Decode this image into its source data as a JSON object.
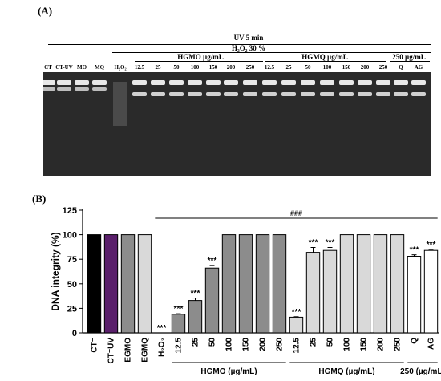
{
  "panel_a": {
    "label": "(A)",
    "header_uv": "UV 5 min",
    "header_h2o2": "H₂O₂ 30 %",
    "group_hgmo": "HGMO µg/mL",
    "group_hgmq": "HGMQ µg/mL",
    "group_250": "250 µg/mL",
    "lanes": [
      "CT",
      "CT-UV",
      "MO",
      "MQ",
      "H₂O₂",
      "12.5",
      "25",
      "50",
      "100",
      "150",
      "200",
      "250",
      "12.5",
      "25",
      "50",
      "100",
      "150",
      "200",
      "250",
      "Q",
      "AG"
    ]
  },
  "panel_b": {
    "label": "(B)"
  },
  "chart_data": {
    "type": "bar",
    "ylabel": "DNA integrity (%)",
    "ylim": [
      0,
      125
    ],
    "yticks": [
      0,
      25,
      50,
      75,
      100,
      125
    ],
    "significance_bar_label": "###",
    "categories": [
      "CT⁻",
      "CT⁺UV",
      "EGMO",
      "EGMQ",
      "H₂O₂",
      "12.5",
      "25",
      "50",
      "100",
      "150",
      "200",
      "250",
      "12.5",
      "25",
      "50",
      "100",
      "150",
      "200",
      "250",
      "Q",
      "AG"
    ],
    "values": [
      100,
      100,
      100,
      100,
      0,
      19,
      33,
      66,
      100,
      100,
      100,
      100,
      16,
      82,
      84,
      100,
      100,
      100,
      100,
      78,
      84
    ],
    "errors": [
      0,
      0,
      0,
      0,
      0,
      0.5,
      2.5,
      2.5,
      0,
      0,
      0,
      0,
      0.5,
      5,
      3,
      0,
      0,
      0,
      0,
      1.5,
      1
    ],
    "stars": [
      "",
      "",
      "",
      "",
      "***",
      "***",
      "***",
      "***",
      "",
      "",
      "",
      "",
      "***",
      "***",
      "***",
      "",
      "",
      "",
      "",
      "***",
      "***"
    ],
    "bar_colors": [
      "#000000",
      "#5a1f6b",
      "#8c8c8c",
      "#d9d9d9",
      "#ffffff",
      "#8c8c8c",
      "#8c8c8c",
      "#8c8c8c",
      "#8c8c8c",
      "#8c8c8c",
      "#8c8c8c",
      "#8c8c8c",
      "#d9d9d9",
      "#d9d9d9",
      "#d9d9d9",
      "#d9d9d9",
      "#d9d9d9",
      "#d9d9d9",
      "#d9d9d9",
      "#ffffff",
      "#ffffff"
    ],
    "group_labels": [
      "HGMO (µg/mL)",
      "HGMQ (µg/mL)",
      "250 (µg/mL)"
    ]
  }
}
